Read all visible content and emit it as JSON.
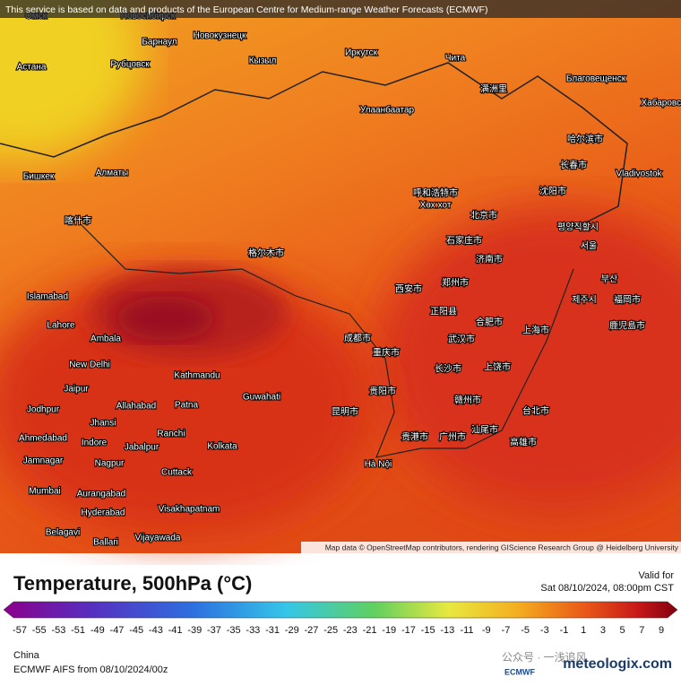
{
  "banner": "This service is based on data and products of the European Centre for Medium-range Weather Forecasts (ECMWF)",
  "cities": [
    "Омск",
    "Новосибирск",
    "Барнаул",
    "Новокузнецк",
    "Рубцовск",
    "Кызыл",
    "Иркутск",
    "Чита",
    "Благовещенск",
    "Астана",
    "满洲里",
    "Улаанбаатар",
    "Хабаровск",
    "哈尔滨市",
    "长春市",
    "Бишкек",
    "Алматы",
    "Vladivostok",
    "呼和浩特市",
    "Хөх хот",
    "沈阳市",
    "北京市",
    "喀什市",
    "평양직할시",
    "石家庄市",
    "서울",
    "格尔木市",
    "济南市",
    "부산",
    "西安市",
    "郑州市",
    "제주시",
    "Islamabad",
    "正阳县",
    "合肥市",
    "福岡市",
    "鹿児島市",
    "Lahore",
    "上海市",
    "Ambala",
    "成都市",
    "武汉市",
    "重庆市",
    "New Delhi",
    "Kathmandu",
    "长沙市",
    "上饶市",
    "Jaipur",
    "Allahabad",
    "Patna",
    "Guwahati",
    "贵阳市",
    "赣州市",
    "昆明市",
    "台北市",
    "Jodhpur",
    "Jhansi",
    "Ranchi",
    "贵港市",
    "广州市",
    "汕尾市",
    "高雄市",
    "Ahmedabad",
    "Indore",
    "Jabalpur",
    "Kolkata",
    "Jamnagar",
    "Nagpur",
    "Cuttack",
    "Hà Nội",
    "Mumbai",
    "Aurangabad",
    "Hyderabad",
    "Visakhapatnam",
    "Belagavi",
    "Vijayawada",
    "Ballari"
  ],
  "map_credit": "Map data © OpenStreetMap contributors, rendering GIScience Research Group @ Heidelberg University",
  "legend": {
    "title": "Temperature, 500hPa (°C)",
    "valid_for": "Valid for",
    "valid_time": "Sat 08/10/2024, 08:00pm CST",
    "ticks": [
      -57,
      -55,
      -53,
      -51,
      -49,
      -47,
      -45,
      -43,
      -41,
      -39,
      -37,
      -35,
      -33,
      -31,
      -29,
      -27,
      -25,
      -23,
      -21,
      -19,
      -17,
      -15,
      -13,
      -11,
      -9,
      -7,
      -5,
      -3,
      -1,
      1,
      3,
      5,
      7,
      9
    ]
  },
  "footer": {
    "region": "China",
    "model": "ECMWF AIFS from  08/10/2024/00z",
    "watermark": "公众号 · 一浅追风",
    "ecmwf": "ECMWF",
    "site": "meteologix.com"
  }
}
